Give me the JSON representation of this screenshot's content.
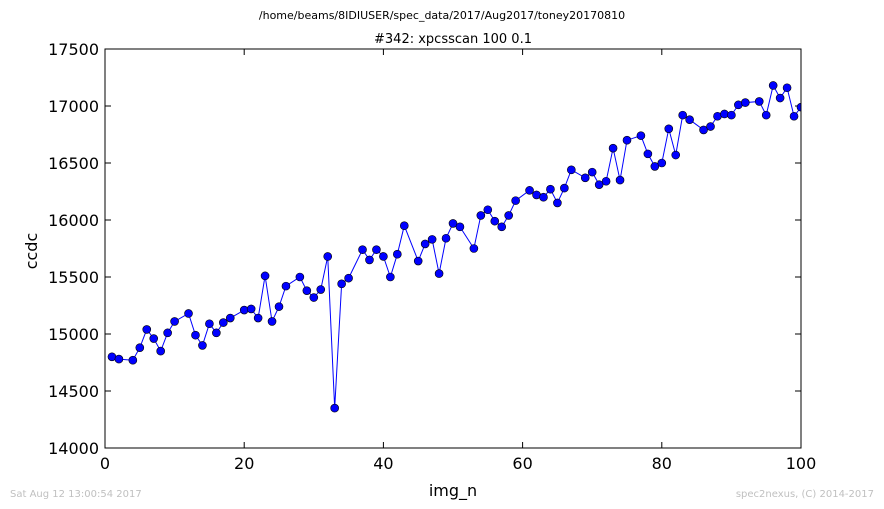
{
  "chart_data": {
    "type": "line",
    "suptitle": "/home/beams/8IDIUSER/spec_data/2017/Aug2017/toney20170810",
    "title": "#342: xpcsscan 100 0.1",
    "xlabel": "img_n",
    "ylabel": "ccdc",
    "xlim": [
      0,
      100
    ],
    "ylim": [
      14000,
      17500
    ],
    "xticks": [
      0,
      20,
      40,
      60,
      80,
      100
    ],
    "yticks": [
      14000,
      14500,
      15000,
      15500,
      16000,
      16500,
      17000,
      17500
    ],
    "grid": false,
    "legend": "none",
    "color": "#0000ff",
    "marker": "circle",
    "series": [
      {
        "x": [
          1,
          2,
          4,
          5,
          6,
          7,
          8,
          9,
          10,
          12,
          13,
          14,
          15,
          16,
          17,
          18,
          20,
          21,
          22,
          23,
          24,
          25,
          26,
          28,
          29,
          30,
          31,
          32,
          33,
          34,
          35,
          37,
          38,
          39,
          40,
          41,
          42,
          43,
          45,
          46,
          47,
          48,
          49,
          50,
          51,
          53,
          54,
          55,
          56,
          57,
          58,
          59,
          61,
          62,
          63,
          64,
          65,
          66,
          67,
          69,
          70,
          71,
          72,
          73,
          74,
          75,
          77,
          78,
          79,
          80,
          81,
          82,
          83,
          84,
          86,
          87,
          88,
          89,
          90,
          91,
          92,
          94,
          95,
          96,
          97,
          98,
          99,
          100
        ],
        "y": [
          14800,
          14780,
          14770,
          14880,
          15040,
          14960,
          14850,
          15010,
          15110,
          15180,
          14990,
          14900,
          15090,
          15010,
          15100,
          15140,
          15210,
          15220,
          15140,
          15510,
          15110,
          15240,
          15420,
          15500,
          15380,
          15320,
          15390,
          15680,
          14350,
          15440,
          15490,
          15740,
          15650,
          15740,
          15680,
          15500,
          15700,
          15950,
          15640,
          15790,
          15830,
          15530,
          15840,
          15970,
          15940,
          15750,
          16040,
          16090,
          15990,
          15940,
          16040,
          16170,
          16260,
          16220,
          16200,
          16270,
          16150,
          16280,
          16440,
          16370,
          16420,
          16310,
          16340,
          16630,
          16350,
          16700,
          16740,
          16580,
          16470,
          16500,
          16800,
          16570,
          16920,
          16880,
          16790,
          16820,
          16910,
          16930,
          16920,
          17010,
          17030,
          17040,
          16920,
          17180,
          17070,
          17160,
          16910,
          16990
        ]
      }
    ]
  },
  "footer": {
    "left": "Sat Aug 12 13:00:54 2017",
    "right": "spec2nexus, (C) 2014-2017"
  }
}
